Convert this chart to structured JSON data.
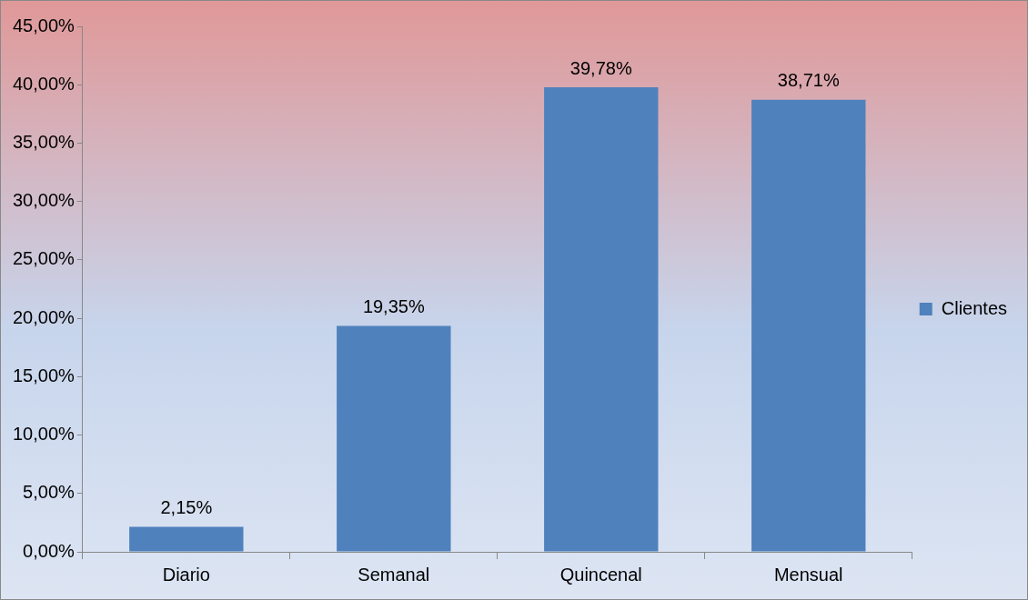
{
  "chart_data": {
    "type": "bar",
    "categories": [
      "Diario",
      "Semanal",
      "Quincenal",
      "Mensual"
    ],
    "series": [
      {
        "name": "Clientes",
        "color": "#4f81bd",
        "values": [
          2.15,
          19.35,
          39.78,
          38.71
        ],
        "value_labels": [
          "2,15%",
          "19,35%",
          "39,78%",
          "38,71%"
        ]
      }
    ],
    "ylim": [
      0,
      45
    ],
    "yticks": [
      {
        "value": 0,
        "label": "0,00%"
      },
      {
        "value": 5,
        "label": "5,00%"
      },
      {
        "value": 10,
        "label": "10,00%"
      },
      {
        "value": 15,
        "label": "15,00%"
      },
      {
        "value": 20,
        "label": "20,00%"
      },
      {
        "value": 25,
        "label": "25,00%"
      },
      {
        "value": 30,
        "label": "30,00%"
      },
      {
        "value": 35,
        "label": "35,00%"
      },
      {
        "value": 40,
        "label": "40,00%"
      },
      {
        "value": 45,
        "label": "45,00%"
      }
    ],
    "grid": false,
    "legend": "right"
  }
}
